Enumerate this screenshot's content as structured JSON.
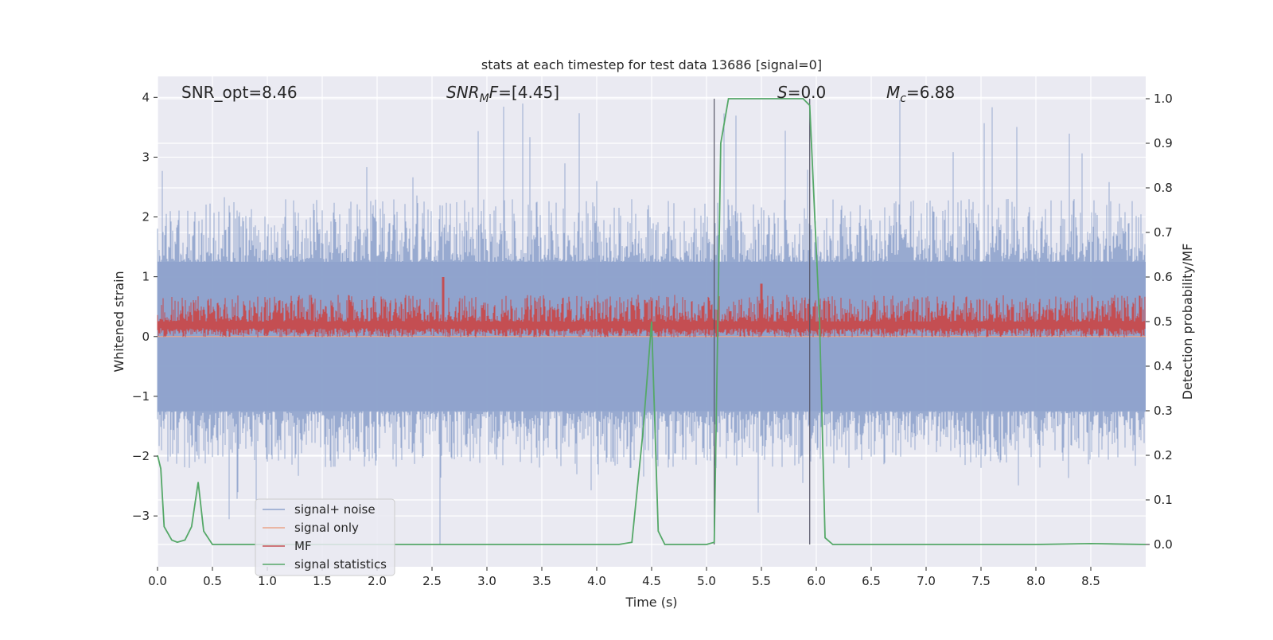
{
  "chart_data": {
    "type": "line",
    "title": "stats at each timestep for test data 13686 [signal=0]",
    "xlabel": "Time (s)",
    "ylabel_left": "Whitened strain",
    "ylabel_right": "Detection probability/MF",
    "xlim": [
      0.0,
      9.0
    ],
    "ylim_left": [
      -3.85,
      4.35
    ],
    "ylim_right": [
      -0.05,
      1.05
    ],
    "grid": true,
    "legend_position": "bottom-left",
    "x_ticks": [
      "0.0",
      "0.5",
      "1.0",
      "1.5",
      "2.0",
      "2.5",
      "3.0",
      "3.5",
      "4.0",
      "4.5",
      "5.0",
      "5.5",
      "6.0",
      "6.5",
      "7.0",
      "7.5",
      "8.0",
      "8.5"
    ],
    "y_left_ticks": [
      "−3",
      "−2",
      "−1",
      "0",
      "1",
      "2",
      "3",
      "4"
    ],
    "y_right_ticks": [
      "0.0",
      "0.1",
      "0.2",
      "0.3",
      "0.4",
      "0.5",
      "0.6",
      "0.7",
      "0.8",
      "0.9",
      "1.0"
    ],
    "annotations": {
      "snr_opt": "SNR_opt=8.46",
      "snr_mf_label": "SNR",
      "snr_mf_sub": "M",
      "snr_mf_rest": "F",
      "snr_mf_value": "=[4.45]",
      "s_label": "S",
      "s_value": "=0.0",
      "mc_label": "M",
      "mc_sub": "c",
      "mc_value": "=6.88"
    },
    "vertical_markers": [
      5.07,
      5.94
    ],
    "vertical_marker_range_right": [
      0.0,
      1.0
    ],
    "series": [
      {
        "name": "signal+ noise",
        "axis": "left",
        "color": "#8fa3cc",
        "style": "dense noise",
        "band_core": [
          -1.25,
          1.25
        ],
        "typical_envelope": [
          -2.2,
          2.3
        ],
        "extremes": [
          -3.5,
          4.0
        ]
      },
      {
        "name": "signal only",
        "axis": "left",
        "color": "#eaa58a",
        "style": "flat",
        "values": [
          0.0
        ]
      },
      {
        "name": "MF",
        "axis": "right",
        "color": "#c44e52",
        "style": "dense noise",
        "baseline": 0.5,
        "typical_range": [
          0.465,
          0.56
        ],
        "peaks": [
          {
            "x": 2.6,
            "y": 0.6
          },
          {
            "x": 5.5,
            "y": 0.585
          }
        ]
      },
      {
        "name": "signal statistics",
        "axis": "right",
        "color": "#55a868",
        "x": [
          0.0,
          0.03,
          0.06,
          0.13,
          0.18,
          0.25,
          0.31,
          0.37,
          0.42,
          0.5,
          0.7,
          1.0,
          2.0,
          3.0,
          4.0,
          4.2,
          4.32,
          4.42,
          4.5,
          4.56,
          4.62,
          4.8,
          5.0,
          5.07,
          5.13,
          5.2,
          5.5,
          5.88,
          5.94,
          6.03,
          6.08,
          6.15,
          7.0,
          8.0,
          8.5,
          9.0
        ],
        "values": [
          0.2,
          0.17,
          0.04,
          0.01,
          0.005,
          0.01,
          0.04,
          0.14,
          0.03,
          0.0,
          0.0,
          0.0,
          0.0,
          0.0,
          0.0,
          0.0,
          0.005,
          0.25,
          0.5,
          0.03,
          0.0,
          0.0,
          0.0,
          0.005,
          0.9,
          1.0,
          1.0,
          1.0,
          0.985,
          0.5,
          0.015,
          0.0,
          0.0,
          0.0,
          0.002,
          0.0
        ]
      }
    ]
  }
}
